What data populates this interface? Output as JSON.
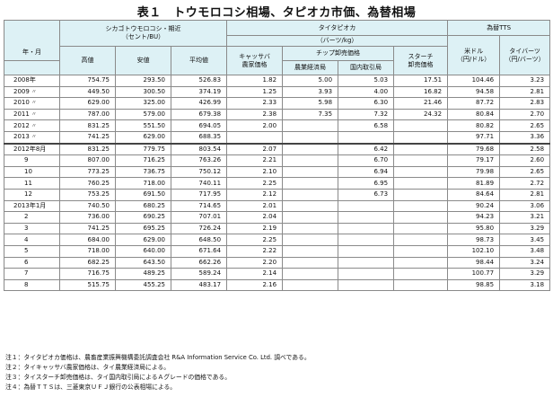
{
  "title": "表１　トウモロコシ相場、タピオカ市価、為替相場",
  "headers": {
    "year_month": "年・月",
    "corn_group": "シカゴトウモロコシ・期近",
    "corn_unit": "（セント/BU）",
    "high": "高値",
    "low": "安値",
    "avg": "平均値",
    "tapioca_group": "タイタピオカ",
    "tapioca_unit": "（バーツ/kg）",
    "cassava": "キャッサバ",
    "cassava2": "農家価格",
    "chip": "チップ卸売価格",
    "chip_agri": "農業経済局",
    "chip_domestic": "国内取引局",
    "starch": "スターチ",
    "starch2": "卸売価格",
    "fx_group": "為替TTS",
    "usd": "米ドル",
    "usd_unit": "（円/ドル）",
    "baht": "タイバーツ",
    "baht_unit": "（円/バーツ）"
  },
  "rows": [
    {
      "label": "2008年",
      "p": "",
      "high": "754.75",
      "low": "293.50",
      "avg": "526.83",
      "cassava": "1.82",
      "agri": "5.00",
      "dom": "5.03",
      "starch": "17.51",
      "usd": "104.46",
      "baht": "3.23"
    },
    {
      "label": "2009",
      "p": "〃",
      "high": "449.50",
      "low": "300.50",
      "avg": "374.19",
      "cassava": "1.25",
      "agri": "3.93",
      "dom": "4.00",
      "starch": "16.82",
      "usd": "94.58",
      "baht": "2.81"
    },
    {
      "label": "2010",
      "p": "〃",
      "high": "629.00",
      "low": "325.00",
      "avg": "426.99",
      "cassava": "2.33",
      "agri": "5.98",
      "dom": "6.30",
      "starch": "21.46",
      "usd": "87.72",
      "baht": "2.83"
    },
    {
      "label": "2011",
      "p": "〃",
      "high": "787.00",
      "low": "579.00",
      "avg": "679.38",
      "cassava": "2.38",
      "agri": "7.35",
      "dom": "7.32",
      "starch": "24.32",
      "usd": "80.84",
      "baht": "2.70"
    },
    {
      "label": "2012",
      "p": "〃",
      "high": "831.25",
      "low": "551.50",
      "avg": "694.05",
      "cassava": "2.00",
      "agri": "",
      "dom": "6.58",
      "starch": "",
      "usd": "80.82",
      "baht": "2.65"
    },
    {
      "label": "2013",
      "p": "〃",
      "high": "741.25",
      "low": "629.00",
      "avg": "688.35",
      "cassava": "",
      "agri": "",
      "dom": "",
      "starch": "",
      "usd": "97.71",
      "baht": "3.36"
    },
    {
      "label": "2012年8月",
      "p": "",
      "high": "831.25",
      "low": "779.75",
      "avg": "803.54",
      "cassava": "2.07",
      "agri": "",
      "dom": "6.42",
      "starch": "",
      "usd": "79.68",
      "baht": "2.58",
      "sep": true
    },
    {
      "label": "9",
      "p": "",
      "high": "807.00",
      "low": "716.25",
      "avg": "763.26",
      "cassava": "2.21",
      "agri": "",
      "dom": "6.70",
      "starch": "",
      "usd": "79.17",
      "baht": "2.60",
      "sub": true
    },
    {
      "label": "10",
      "p": "",
      "high": "773.25",
      "low": "736.75",
      "avg": "750.12",
      "cassava": "2.10",
      "agri": "",
      "dom": "6.94",
      "starch": "",
      "usd": "79.98",
      "baht": "2.65",
      "sub": true
    },
    {
      "label": "11",
      "p": "",
      "high": "760.25",
      "low": "718.00",
      "avg": "740.11",
      "cassava": "2.25",
      "agri": "",
      "dom": "6.95",
      "starch": "",
      "usd": "81.89",
      "baht": "2.72",
      "sub": true
    },
    {
      "label": "12",
      "p": "",
      "high": "753.25",
      "low": "691.50",
      "avg": "717.95",
      "cassava": "2.12",
      "agri": "",
      "dom": "6.73",
      "starch": "",
      "usd": "84.64",
      "baht": "2.81",
      "sub": true
    },
    {
      "label": "2013年1月",
      "p": "",
      "high": "740.50",
      "low": "680.25",
      "avg": "714.65",
      "cassava": "2.01",
      "agri": "",
      "dom": "",
      "starch": "",
      "usd": "90.24",
      "baht": "3.06"
    },
    {
      "label": "2",
      "p": "",
      "high": "736.00",
      "low": "690.25",
      "avg": "707.01",
      "cassava": "2.04",
      "agri": "",
      "dom": "",
      "starch": "",
      "usd": "94.23",
      "baht": "3.21",
      "sub": true
    },
    {
      "label": "3",
      "p": "",
      "high": "741.25",
      "low": "695.25",
      "avg": "726.24",
      "cassava": "2.19",
      "agri": "",
      "dom": "",
      "starch": "",
      "usd": "95.80",
      "baht": "3.29",
      "sub": true
    },
    {
      "label": "4",
      "p": "",
      "high": "684.00",
      "low": "629.00",
      "avg": "648.50",
      "cassava": "2.25",
      "agri": "",
      "dom": "",
      "starch": "",
      "usd": "98.73",
      "baht": "3.45",
      "sub": true
    },
    {
      "label": "5",
      "p": "",
      "high": "718.00",
      "low": "640.00",
      "avg": "671.64",
      "cassava": "2.22",
      "agri": "",
      "dom": "",
      "starch": "",
      "usd": "102.10",
      "baht": "3.48",
      "sub": true
    },
    {
      "label": "6",
      "p": "",
      "high": "682.25",
      "low": "643.50",
      "avg": "662.26",
      "cassava": "2.20",
      "agri": "",
      "dom": "",
      "starch": "",
      "usd": "98.44",
      "baht": "3.24",
      "sub": true
    },
    {
      "label": "7",
      "p": "",
      "high": "716.75",
      "low": "489.25",
      "avg": "589.24",
      "cassava": "2.14",
      "agri": "",
      "dom": "",
      "starch": "",
      "usd": "100.77",
      "baht": "3.29",
      "sub": true
    },
    {
      "label": "8",
      "p": "",
      "high": "515.75",
      "low": "455.25",
      "avg": "483.17",
      "cassava": "2.16",
      "agri": "",
      "dom": "",
      "starch": "",
      "usd": "98.85",
      "baht": "3.18",
      "sub": true
    }
  ],
  "notes": [
    "注１：タイタピオカ価格は、農畜産業振興機構委託調査会社 R&A Information Service Co. Ltd. 調べである。",
    "注２：タイキャッサバ農家価格は、タイ農業経済局による。",
    "注３：タイスターチ卸売価格は、タイ国内取引局によるＡグレードの価格である。",
    "注４：為替ＴＴＳは、三菱東京ＵＦＪ銀行の公表相場による。"
  ]
}
